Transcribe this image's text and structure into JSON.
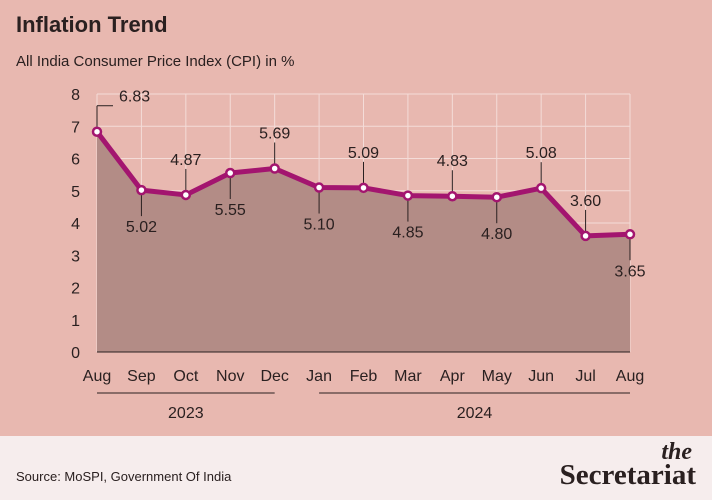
{
  "header": {
    "title": "Inflation Trend",
    "subtitle": "All India Consumer Price Index (CPI) in %"
  },
  "footer": {
    "source": "Source: MoSPI, Government Of India",
    "brand_top": "the",
    "brand_bottom": "Secretariat"
  },
  "colors": {
    "background": "#e8b8b0",
    "area_fill": "#b38c86",
    "line": "#a3156f",
    "grid": "#f4dcd8",
    "text": "#2a2020",
    "footer_bg": "#f6eded"
  },
  "chart_data": {
    "type": "area",
    "categories": [
      "Aug",
      "Sep",
      "Oct",
      "Nov",
      "Dec",
      "Jan",
      "Feb",
      "Mar",
      "Apr",
      "May",
      "Jun",
      "Jul",
      "Aug"
    ],
    "values": [
      6.83,
      5.02,
      4.87,
      5.55,
      5.69,
      5.1,
      5.09,
      4.85,
      4.83,
      4.8,
      5.08,
      3.6,
      3.65
    ],
    "data_labels": [
      "6.83",
      "5.02",
      "4.87",
      "5.55",
      "5.69",
      "5.10",
      "5.09",
      "4.85",
      "4.83",
      "4.80",
      "5.08",
      "3.60",
      "3.65"
    ],
    "label_positions": [
      "above",
      "below",
      "above",
      "below",
      "above",
      "below",
      "above",
      "below",
      "above",
      "below",
      "above",
      "above",
      "below"
    ],
    "ylim": [
      0,
      8
    ],
    "yticks": [
      0,
      1,
      2,
      3,
      4,
      5,
      6,
      7,
      8
    ],
    "grid": true,
    "year_groups": [
      {
        "label": "2023",
        "start": 0,
        "end": 4
      },
      {
        "label": "2024",
        "start": 5,
        "end": 12
      }
    ]
  }
}
